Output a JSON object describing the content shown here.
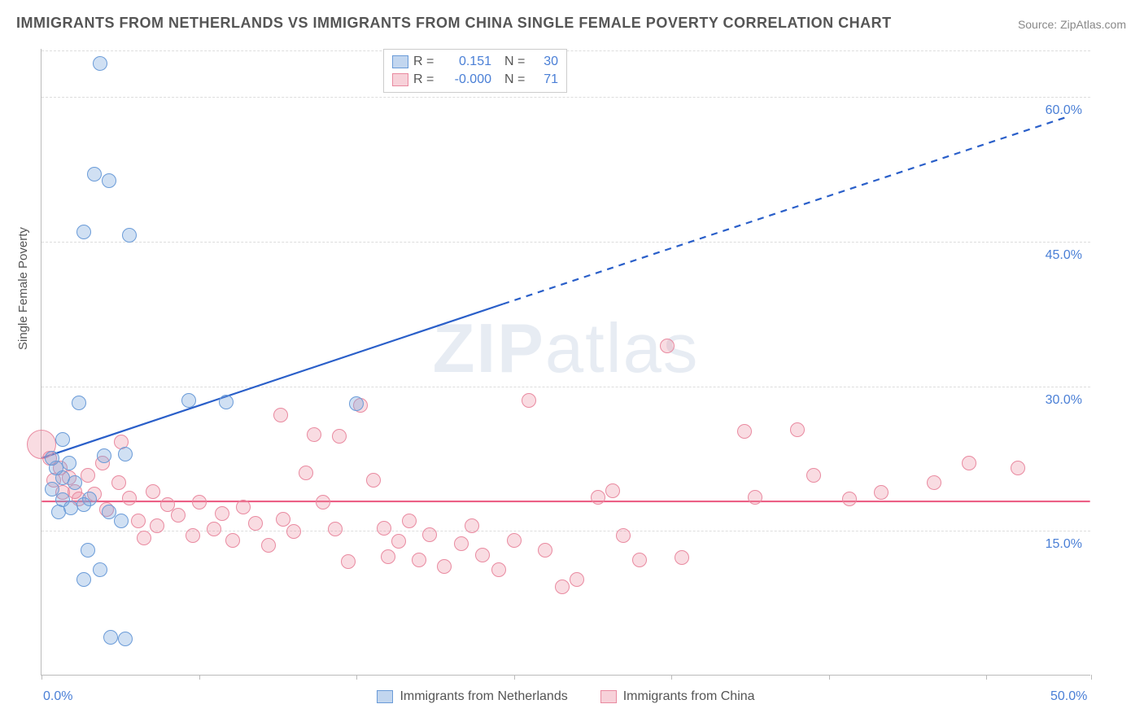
{
  "title": "IMMIGRANTS FROM NETHERLANDS VS IMMIGRANTS FROM CHINA SINGLE FEMALE POVERTY CORRELATION CHART",
  "source": "Source: ZipAtlas.com",
  "ylabel": "Single Female Poverty",
  "watermark_bold": "ZIP",
  "watermark_light": "atlas",
  "chart": {
    "type": "scatter",
    "background_color": "#ffffff",
    "grid_color": "#dddddd",
    "axis_color": "#bbbbbb",
    "title_color": "#555555",
    "title_fontsize": 18,
    "tick_label_color": "#4a7fd6",
    "tick_label_fontsize": 16,
    "ylabel_fontsize": 15,
    "x_range": [
      0,
      50
    ],
    "y_range": [
      0,
      65
    ],
    "y_gridlines": [
      15,
      30,
      45,
      60
    ],
    "y_tick_labels": [
      "15.0%",
      "30.0%",
      "45.0%",
      "60.0%"
    ],
    "x_tick_labels": {
      "0": "0.0%",
      "50": "50.0%"
    },
    "x_ticks": [
      0,
      7.5,
      15,
      22.5,
      30,
      37.5,
      45,
      50
    ]
  },
  "legend": {
    "series": [
      {
        "name": "Immigrants from Netherlands",
        "r_label": "R =",
        "r": "0.151",
        "n_label": "N =",
        "n": "30",
        "fill": "rgba(120,165,220,0.45)",
        "stroke": "#6a9bd8"
      },
      {
        "name": "Immigrants from China",
        "r_label": "R =",
        "r": "-0.000",
        "n_label": "N =",
        "n": "71",
        "fill": "rgba(235,140,160,0.4)",
        "stroke": "#e98aa0"
      }
    ]
  },
  "series_netherlands": {
    "fill": "rgba(120,165,220,0.35)",
    "stroke": "#6a9bd8",
    "stroke_width": 1.5,
    "radius": 9,
    "points": [
      [
        2.8,
        63.5
      ],
      [
        2.5,
        52.0
      ],
      [
        3.2,
        51.3
      ],
      [
        2.0,
        46.0
      ],
      [
        4.2,
        45.7
      ],
      [
        1.8,
        28.3
      ],
      [
        7.0,
        28.5
      ],
      [
        8.8,
        28.4
      ],
      [
        15.0,
        28.2
      ],
      [
        1.0,
        24.5
      ],
      [
        1.3,
        22.0
      ],
      [
        4.0,
        23.0
      ],
      [
        1.0,
        20.5
      ],
      [
        1.6,
        20.0
      ],
      [
        0.7,
        21.5
      ],
      [
        0.5,
        19.3
      ],
      [
        0.5,
        22.5
      ],
      [
        1.0,
        18.2
      ],
      [
        1.4,
        17.4
      ],
      [
        2.3,
        18.3
      ],
      [
        3.2,
        17.0
      ],
      [
        2.0,
        17.7
      ],
      [
        3.8,
        16.0
      ],
      [
        2.2,
        13.0
      ],
      [
        2.8,
        11.0
      ],
      [
        2.0,
        10.0
      ],
      [
        3.3,
        4.0
      ],
      [
        4.0,
        3.8
      ],
      [
        0.8,
        17.0
      ],
      [
        3.0,
        22.8
      ]
    ],
    "trend": {
      "solid": {
        "x1": 0,
        "y1": 22.5,
        "x2": 22,
        "y2": 38.5
      },
      "dashed": {
        "x1": 22,
        "y1": 38.5,
        "x2": 49,
        "y2": 58.0
      },
      "color": "#2a5fc9",
      "width": 2.2
    }
  },
  "series_china": {
    "fill": "rgba(235,140,160,0.30)",
    "stroke": "#e98aa0",
    "stroke_width": 1.5,
    "radius": 9,
    "large_radius": 18,
    "points": [
      [
        0.0,
        24.0,
        18
      ],
      [
        0.4,
        22.5
      ],
      [
        0.6,
        20.3
      ],
      [
        0.9,
        21.5
      ],
      [
        1.0,
        19.0
      ],
      [
        1.3,
        20.5
      ],
      [
        1.6,
        19.1
      ],
      [
        1.8,
        18.3
      ],
      [
        2.2,
        20.8
      ],
      [
        2.5,
        18.8
      ],
      [
        2.9,
        22.0
      ],
      [
        3.1,
        17.2
      ],
      [
        3.7,
        20.0
      ],
      [
        3.8,
        24.2
      ],
      [
        4.2,
        18.4
      ],
      [
        4.6,
        16.0
      ],
      [
        4.9,
        14.3
      ],
      [
        5.3,
        19.1
      ],
      [
        5.5,
        15.5
      ],
      [
        6.0,
        17.7
      ],
      [
        6.5,
        16.6
      ],
      [
        7.2,
        14.5
      ],
      [
        7.5,
        18.0
      ],
      [
        8.2,
        15.2
      ],
      [
        8.6,
        16.8
      ],
      [
        9.1,
        14.0
      ],
      [
        9.6,
        17.5
      ],
      [
        10.2,
        15.8
      ],
      [
        10.8,
        13.5
      ],
      [
        11.4,
        27.0
      ],
      [
        11.5,
        16.2
      ],
      [
        12.0,
        14.9
      ],
      [
        12.6,
        21.0
      ],
      [
        13.0,
        25.0
      ],
      [
        13.4,
        18.0
      ],
      [
        14.0,
        15.2
      ],
      [
        14.2,
        24.8
      ],
      [
        14.6,
        11.8
      ],
      [
        15.2,
        28.0
      ],
      [
        15.8,
        20.3
      ],
      [
        16.3,
        15.3
      ],
      [
        16.5,
        12.3
      ],
      [
        17.0,
        13.9
      ],
      [
        17.5,
        16.0
      ],
      [
        18.0,
        12.0
      ],
      [
        18.5,
        14.6
      ],
      [
        19.2,
        11.3
      ],
      [
        20.0,
        13.7
      ],
      [
        20.5,
        15.5
      ],
      [
        21.0,
        12.5
      ],
      [
        21.8,
        11.0
      ],
      [
        22.5,
        14.0
      ],
      [
        23.2,
        28.5
      ],
      [
        24.0,
        13.0
      ],
      [
        25.5,
        10.0
      ],
      [
        24.8,
        9.2
      ],
      [
        26.5,
        18.5
      ],
      [
        27.2,
        19.2
      ],
      [
        27.7,
        14.5
      ],
      [
        28.5,
        12.0
      ],
      [
        29.8,
        34.2
      ],
      [
        30.5,
        12.2
      ],
      [
        33.5,
        25.3
      ],
      [
        34.0,
        18.5
      ],
      [
        36.0,
        25.5
      ],
      [
        36.8,
        20.8
      ],
      [
        38.5,
        18.3
      ],
      [
        40.0,
        19.0
      ],
      [
        42.5,
        20.0
      ],
      [
        44.2,
        22.0
      ],
      [
        46.5,
        21.5
      ]
    ],
    "trend": {
      "solid": {
        "x1": 0,
        "y1": 18.0,
        "x2": 50,
        "y2": 18.0
      },
      "color": "#ec5f85",
      "width": 2.2
    }
  }
}
